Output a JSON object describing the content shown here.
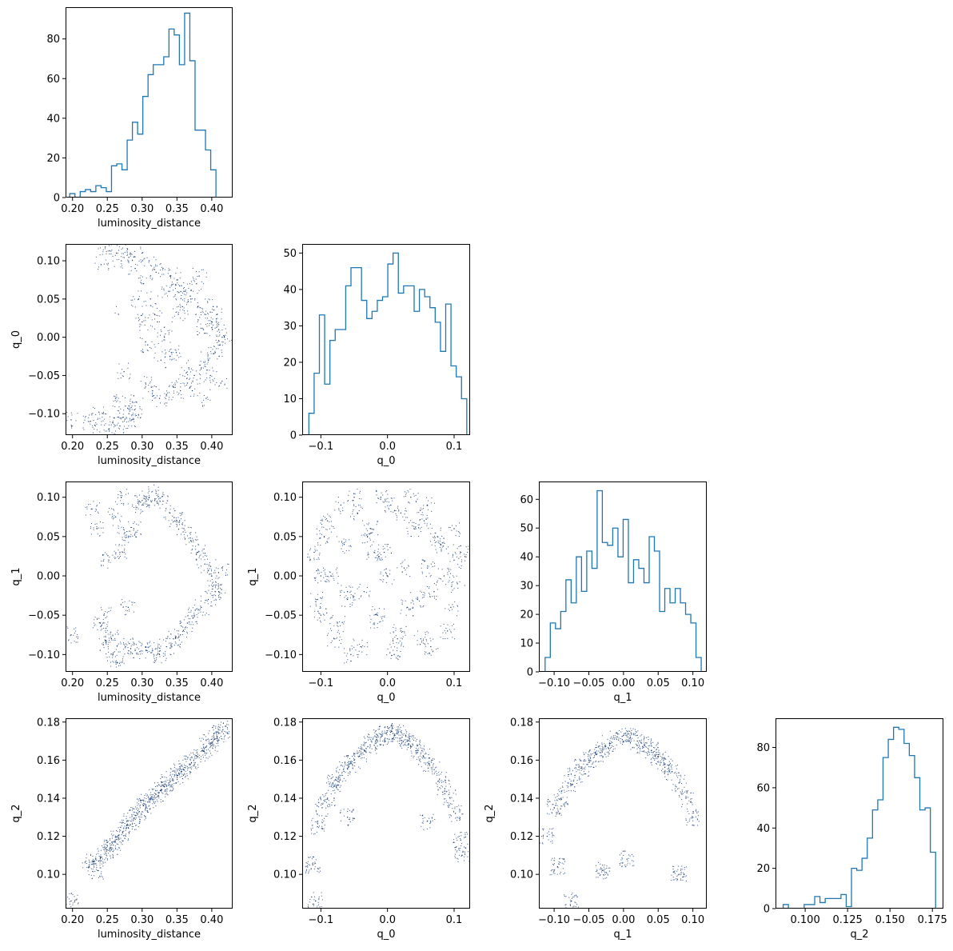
{
  "chart_data": [
    {
      "type": "histogram",
      "panel": "luminosity_distance",
      "xlabel": "luminosity_distance",
      "ylabel": "",
      "xlim": [
        0.19,
        0.43
      ],
      "ylim": [
        0,
        96
      ],
      "xticks": [
        0.2,
        0.25,
        0.3,
        0.35,
        0.4
      ],
      "xtick_labels": [
        "0.20",
        "0.25",
        "0.30",
        "0.35",
        "0.40"
      ],
      "yticks": [
        0,
        20,
        40,
        60,
        80
      ],
      "ytick_labels": [
        "0",
        "20",
        "40",
        "60",
        "80"
      ],
      "bin_edges": [
        0.196,
        0.2035,
        0.211,
        0.2185,
        0.226,
        0.2335,
        0.241,
        0.2485,
        0.256,
        0.2635,
        0.271,
        0.2785,
        0.286,
        0.2935,
        0.301,
        0.3085,
        0.316,
        0.3235,
        0.331,
        0.3385,
        0.346,
        0.3535,
        0.361,
        0.3685,
        0.376,
        0.3835,
        0.391,
        0.3985,
        0.406,
        0.4135,
        0.421
      ],
      "counts": [
        2,
        0,
        3,
        4,
        3,
        6,
        5,
        3,
        16,
        17,
        14,
        29,
        38,
        32,
        51,
        62,
        67,
        67,
        71,
        85,
        82,
        67,
        93,
        69,
        34,
        34,
        24,
        14,
        0,
        0
      ]
    },
    {
      "type": "scatter",
      "xlabel": "luminosity_distance",
      "ylabel": "q_0",
      "xlim": [
        0.19,
        0.43
      ],
      "ylim": [
        -0.128,
        0.122
      ],
      "xticks": [
        0.2,
        0.25,
        0.3,
        0.35,
        0.4
      ],
      "xtick_labels": [
        "0.20",
        "0.25",
        "0.30",
        "0.35",
        "0.40"
      ],
      "yticks": [
        -0.1,
        -0.05,
        0.0,
        0.05,
        0.1
      ],
      "ytick_labels": [
        "−0.10",
        "−0.05",
        "0.00",
        "0.05",
        "0.10"
      ],
      "points_x": [
        0.198,
        0.226,
        0.232,
        0.238,
        0.244,
        0.252,
        0.258,
        0.262,
        0.268,
        0.272,
        0.276,
        0.281,
        0.285,
        0.289,
        0.292,
        0.241,
        0.247,
        0.263,
        0.27,
        0.279,
        0.288,
        0.266,
        0.274,
        0.29,
        0.3,
        0.31,
        0.32,
        0.33,
        0.34,
        0.35,
        0.36,
        0.37,
        0.38,
        0.39,
        0.4,
        0.41,
        0.415,
        0.305,
        0.315,
        0.325,
        0.335,
        0.345,
        0.355,
        0.365,
        0.375,
        0.385,
        0.395,
        0.405,
        0.412,
        0.418,
        0.295,
        0.3,
        0.308,
        0.318,
        0.327,
        0.338,
        0.349,
        0.358,
        0.367,
        0.378,
        0.388,
        0.398,
        0.408,
        0.302,
        0.312,
        0.322,
        0.332,
        0.342,
        0.352,
        0.362,
        0.372,
        0.382,
        0.392,
        0.402,
        0.413
      ],
      "points_y": [
        -0.108,
        -0.11,
        -0.115,
        -0.098,
        -0.1,
        -0.12,
        -0.112,
        -0.08,
        -0.116,
        -0.105,
        -0.09,
        -0.1,
        -0.108,
        -0.095,
        -0.085,
        0.095,
        0.118,
        0.11,
        0.1,
        0.115,
        0.105,
        0.03,
        -0.045,
        0.09,
        0.11,
        0.1,
        0.085,
        0.09,
        0.08,
        0.075,
        0.06,
        0.05,
        0.04,
        0.03,
        0.02,
        0.01,
        0.0,
        -0.06,
        -0.07,
        -0.08,
        -0.075,
        -0.065,
        -0.07,
        -0.06,
        -0.05,
        -0.04,
        -0.03,
        -0.02,
        -0.01,
        0.0,
        0.05,
        0.02,
        -0.01,
        0.03,
        -0.03,
        0.06,
        -0.02,
        0.04,
        -0.04,
        0.07,
        0.01,
        -0.05,
        0.03,
        0.07,
        0.05,
        0.02,
        0.0,
        -0.02,
        0.03,
        0.06,
        -0.07,
        0.08,
        -0.08,
        0.04,
        -0.06
      ]
    },
    {
      "type": "histogram",
      "panel": "q_0",
      "xlabel": "q_0",
      "ylabel": "",
      "xlim": [
        -0.128,
        0.124
      ],
      "ylim": [
        0,
        52.5
      ],
      "xticks": [
        -0.1,
        0.0,
        0.1
      ],
      "xtick_labels": [
        "−0.1",
        "0.0",
        "0.1"
      ],
      "yticks": [
        0,
        10,
        20,
        30,
        40,
        50
      ],
      "ytick_labels": [
        "0",
        "10",
        "20",
        "30",
        "40",
        "50"
      ],
      "bin_edges": [
        -0.118,
        -0.1101,
        -0.1022,
        -0.0943,
        -0.0864,
        -0.0785,
        -0.0706,
        -0.0627,
        -0.0548,
        -0.0469,
        -0.039,
        -0.0311,
        -0.0232,
        -0.0153,
        -0.0074,
        0.0005,
        0.0084,
        0.0163,
        0.0242,
        0.0321,
        0.04,
        0.0479,
        0.0558,
        0.0637,
        0.0716,
        0.0795,
        0.0874,
        0.0953,
        0.1032,
        0.1111,
        0.119
      ],
      "counts": [
        6,
        17,
        33,
        14,
        26,
        29,
        29,
        41,
        46,
        46,
        37,
        32,
        34,
        37,
        38,
        47,
        50,
        39,
        41,
        41,
        34,
        40,
        38,
        35,
        31,
        23,
        36,
        19,
        16,
        10
      ]
    },
    {
      "type": "scatter",
      "xlabel": "luminosity_distance",
      "ylabel": "q_1",
      "xlim": [
        0.19,
        0.43
      ],
      "ylim": [
        -0.122,
        0.12
      ],
      "xticks": [
        0.2,
        0.25,
        0.3,
        0.35,
        0.4
      ],
      "xtick_labels": [
        "0.20",
        "0.25",
        "0.30",
        "0.35",
        "0.40"
      ],
      "yticks": [
        -0.1,
        -0.05,
        0.0,
        0.05,
        0.1
      ],
      "ytick_labels": [
        "−0.10",
        "−0.05",
        "0.00",
        "0.05",
        "0.10"
      ],
      "points_x": [
        0.198,
        0.228,
        0.235,
        0.24,
        0.245,
        0.252,
        0.258,
        0.264,
        0.27,
        0.276,
        0.283,
        0.29,
        0.296,
        0.248,
        0.256,
        0.262,
        0.268,
        0.275,
        0.28,
        0.288,
        0.3,
        0.31,
        0.32,
        0.33,
        0.34,
        0.35,
        0.36,
        0.37,
        0.38,
        0.39,
        0.4,
        0.41,
        0.305,
        0.315,
        0.325,
        0.335,
        0.345,
        0.355,
        0.365,
        0.375,
        0.385,
        0.395,
        0.405,
        0.415
      ],
      "points_y": [
        -0.075,
        0.085,
        0.06,
        -0.06,
        -0.05,
        0.02,
        -0.1,
        -0.11,
        0.1,
        -0.09,
        0.05,
        -0.095,
        0.095,
        -0.085,
        -0.08,
        0.075,
        0.03,
        0.055,
        -0.04,
        0.06,
        0.09,
        0.1,
        0.105,
        0.095,
        0.08,
        0.07,
        0.06,
        0.045,
        0.03,
        0.015,
        0.0,
        -0.02,
        -0.09,
        -0.095,
        -0.1,
        -0.09,
        -0.08,
        -0.075,
        -0.06,
        -0.05,
        -0.04,
        -0.03,
        -0.02,
        0.01
      ]
    },
    {
      "type": "scatter",
      "xlabel": "q_0",
      "ylabel": "q_1",
      "xlim": [
        -0.128,
        0.124
      ],
      "ylim": [
        -0.122,
        0.12
      ],
      "xticks": [
        -0.1,
        0.0,
        0.1
      ],
      "xtick_labels": [
        "−0.1",
        "0.0",
        "0.1"
      ],
      "yticks": [
        -0.1,
        -0.05,
        0.0,
        0.05,
        0.1
      ],
      "ytick_labels": [
        "−0.10",
        "−0.05",
        "0.00",
        "0.05",
        "0.10"
      ],
      "points_x": [
        -0.11,
        -0.1,
        -0.09,
        -0.08,
        -0.07,
        -0.06,
        -0.05,
        -0.04,
        -0.03,
        -0.02,
        -0.01,
        0.0,
        0.01,
        0.02,
        0.03,
        0.04,
        0.05,
        0.06,
        0.07,
        0.08,
        0.09,
        0.1,
        0.11,
        -0.105,
        -0.095,
        -0.085,
        -0.075,
        -0.065,
        -0.055,
        -0.045,
        -0.035,
        -0.025,
        -0.015,
        -0.005,
        0.005,
        0.015,
        0.025,
        0.035,
        0.045,
        0.055,
        0.065,
        0.075,
        0.085,
        0.095,
        0.105,
        -0.1,
        -0.06,
        -0.02,
        0.02,
        0.06,
        0.1
      ],
      "points_y": [
        0.03,
        -0.05,
        0.07,
        -0.08,
        0.09,
        -0.03,
        0.1,
        -0.09,
        0.05,
        -0.06,
        0.1,
        0.0,
        -0.1,
        0.08,
        -0.04,
        0.06,
        -0.08,
        0.09,
        -0.02,
        0.04,
        -0.07,
        0.02,
        0.03,
        -0.03,
        0.05,
        0.0,
        -0.06,
        0.04,
        -0.1,
        0.08,
        -0.02,
        0.06,
        -0.05,
        0.03,
        0.09,
        -0.08,
        0.01,
        0.1,
        -0.03,
        0.07,
        -0.09,
        0.05,
        0.0,
        -0.04,
        -0.01,
        0.0,
        -0.02,
        0.03,
        -0.07,
        0.01,
        0.06
      ]
    },
    {
      "type": "histogram",
      "panel": "q_1",
      "xlabel": "q_1",
      "ylabel": "",
      "xlim": [
        -0.122,
        0.12
      ],
      "ylim": [
        0,
        66.2
      ],
      "xticks": [
        -0.1,
        -0.05,
        0.0,
        0.05,
        0.1
      ],
      "xtick_labels": [
        "−0.10",
        "−0.05",
        "0.00",
        "0.05",
        "0.10"
      ],
      "yticks": [
        0,
        10,
        20,
        30,
        40,
        50,
        60
      ],
      "ytick_labels": [
        "0",
        "10",
        "20",
        "30",
        "40",
        "50",
        "60"
      ],
      "bin_edges": [
        -0.113,
        -0.1055,
        -0.098,
        -0.0905,
        -0.083,
        -0.0755,
        -0.068,
        -0.0605,
        -0.053,
        -0.0455,
        -0.038,
        -0.0305,
        -0.023,
        -0.0155,
        -0.008,
        -0.0005,
        0.007,
        0.0145,
        0.022,
        0.0295,
        0.037,
        0.0445,
        0.052,
        0.0595,
        0.067,
        0.0745,
        0.082,
        0.0895,
        0.097,
        0.1045,
        0.112
      ],
      "counts": [
        5,
        17,
        15,
        21,
        32,
        24,
        40,
        28,
        42,
        36,
        63,
        45,
        44,
        50,
        40,
        53,
        31,
        39,
        36,
        31,
        47,
        42,
        21,
        29,
        24,
        29,
        24,
        20,
        17,
        5
      ]
    },
    {
      "type": "scatter",
      "xlabel": "luminosity_distance",
      "ylabel": "q_2",
      "xlim": [
        0.19,
        0.43
      ],
      "ylim": [
        0.082,
        0.182
      ],
      "xticks": [
        0.2,
        0.25,
        0.3,
        0.35,
        0.4
      ],
      "xtick_labels": [
        "0.20",
        "0.25",
        "0.30",
        "0.35",
        "0.40"
      ],
      "yticks": [
        0.1,
        0.12,
        0.14,
        0.16,
        0.18
      ],
      "ytick_labels": [
        "0.10",
        "0.12",
        "0.14",
        "0.16",
        "0.18"
      ],
      "points_x": [
        0.198,
        0.224,
        0.23,
        0.236,
        0.242,
        0.248,
        0.254,
        0.26,
        0.266,
        0.272,
        0.278,
        0.284,
        0.29,
        0.296,
        0.302,
        0.308,
        0.314,
        0.32,
        0.326,
        0.332,
        0.338,
        0.344,
        0.35,
        0.356,
        0.362,
        0.368,
        0.374,
        0.38,
        0.386,
        0.392,
        0.398,
        0.404,
        0.41,
        0.416
      ],
      "points_y": [
        0.086,
        0.104,
        0.107,
        0.102,
        0.109,
        0.111,
        0.114,
        0.117,
        0.119,
        0.122,
        0.126,
        0.128,
        0.131,
        0.133,
        0.136,
        0.138,
        0.14,
        0.142,
        0.144,
        0.146,
        0.148,
        0.15,
        0.152,
        0.154,
        0.156,
        0.158,
        0.16,
        0.162,
        0.165,
        0.167,
        0.169,
        0.171,
        0.174,
        0.176
      ]
    },
    {
      "type": "scatter",
      "xlabel": "q_0",
      "ylabel": "q_2",
      "xlim": [
        -0.128,
        0.124
      ],
      "ylim": [
        0.082,
        0.182
      ],
      "xticks": [
        -0.1,
        0.0,
        0.1
      ],
      "xtick_labels": [
        "−0.1",
        "0.0",
        "0.1"
      ],
      "yticks": [
        0.1,
        0.12,
        0.14,
        0.16,
        0.18
      ],
      "ytick_labels": [
        "0.10",
        "0.12",
        "0.14",
        "0.16",
        "0.18"
      ],
      "points_x": [
        -0.112,
        -0.105,
        -0.098,
        -0.09,
        -0.082,
        -0.074,
        -0.066,
        -0.058,
        -0.05,
        -0.042,
        -0.034,
        -0.026,
        -0.018,
        -0.01,
        -0.002,
        0.006,
        0.014,
        0.022,
        0.03,
        0.038,
        0.046,
        0.054,
        0.062,
        0.07,
        0.078,
        0.086,
        0.094,
        0.102,
        0.11,
        -0.108,
        0.112,
        -0.06,
        0.06
      ],
      "points_y": [
        0.105,
        0.125,
        0.135,
        0.14,
        0.148,
        0.15,
        0.155,
        0.158,
        0.16,
        0.162,
        0.165,
        0.168,
        0.17,
        0.172,
        0.174,
        0.175,
        0.174,
        0.172,
        0.17,
        0.168,
        0.165,
        0.162,
        0.158,
        0.155,
        0.15,
        0.145,
        0.14,
        0.132,
        0.118,
        0.086,
        0.11,
        0.13,
        0.128
      ]
    },
    {
      "type": "scatter",
      "xlabel": "q_1",
      "ylabel": "q_2",
      "xlim": [
        -0.122,
        0.12
      ],
      "ylim": [
        0.082,
        0.182
      ],
      "xticks": [
        -0.1,
        -0.05,
        0.0,
        0.05,
        0.1
      ],
      "xtick_labels": [
        "−0.10",
        "−0.05",
        "0.00",
        "0.05",
        "0.10"
      ],
      "yticks": [
        0.1,
        0.12,
        0.14,
        0.16,
        0.18
      ],
      "ytick_labels": [
        "0.10",
        "0.12",
        "0.14",
        "0.16",
        "0.18"
      ],
      "points_x": [
        -0.11,
        -0.1,
        -0.09,
        -0.08,
        -0.07,
        -0.06,
        -0.05,
        -0.04,
        -0.03,
        -0.02,
        -0.01,
        0.0,
        0.01,
        0.02,
        0.03,
        0.04,
        0.05,
        0.06,
        0.07,
        0.08,
        0.09,
        0.1,
        -0.075,
        -0.03,
        0.005,
        0.08,
        -0.095
      ],
      "points_y": [
        0.12,
        0.135,
        0.14,
        0.148,
        0.152,
        0.156,
        0.16,
        0.163,
        0.166,
        0.169,
        0.171,
        0.173,
        0.172,
        0.17,
        0.168,
        0.165,
        0.162,
        0.158,
        0.154,
        0.148,
        0.14,
        0.13,
        0.086,
        0.102,
        0.108,
        0.1,
        0.104
      ]
    },
    {
      "type": "histogram",
      "panel": "q_2",
      "xlabel": "q_2",
      "ylabel": "",
      "xlim": [
        0.0825,
        0.1815
      ],
      "ylim": [
        0,
        94.5
      ],
      "xticks": [
        0.1,
        0.125,
        0.15,
        0.175
      ],
      "xtick_labels": [
        "0.100",
        "0.125",
        "0.150",
        "0.175"
      ],
      "yticks": [
        0,
        20,
        40,
        60,
        80
      ],
      "ytick_labels": [
        "0",
        "20",
        "40",
        "60",
        "80"
      ],
      "bin_edges": [
        0.087,
        0.0901,
        0.0932,
        0.0963,
        0.0994,
        0.1025,
        0.1056,
        0.1087,
        0.1118,
        0.1149,
        0.118,
        0.1211,
        0.1242,
        0.1273,
        0.1304,
        0.1335,
        0.1366,
        0.1397,
        0.1428,
        0.1459,
        0.149,
        0.1521,
        0.1552,
        0.1583,
        0.1614,
        0.1645,
        0.1676,
        0.1707,
        0.1738,
        0.1769,
        0.18
      ],
      "counts": [
        2,
        0,
        0,
        0,
        2,
        2,
        6,
        3,
        5,
        5,
        5,
        7,
        1,
        20,
        19,
        25,
        35,
        49,
        54,
        75,
        84,
        90,
        89,
        82,
        76,
        65,
        49,
        50,
        28,
        0
      ]
    }
  ]
}
